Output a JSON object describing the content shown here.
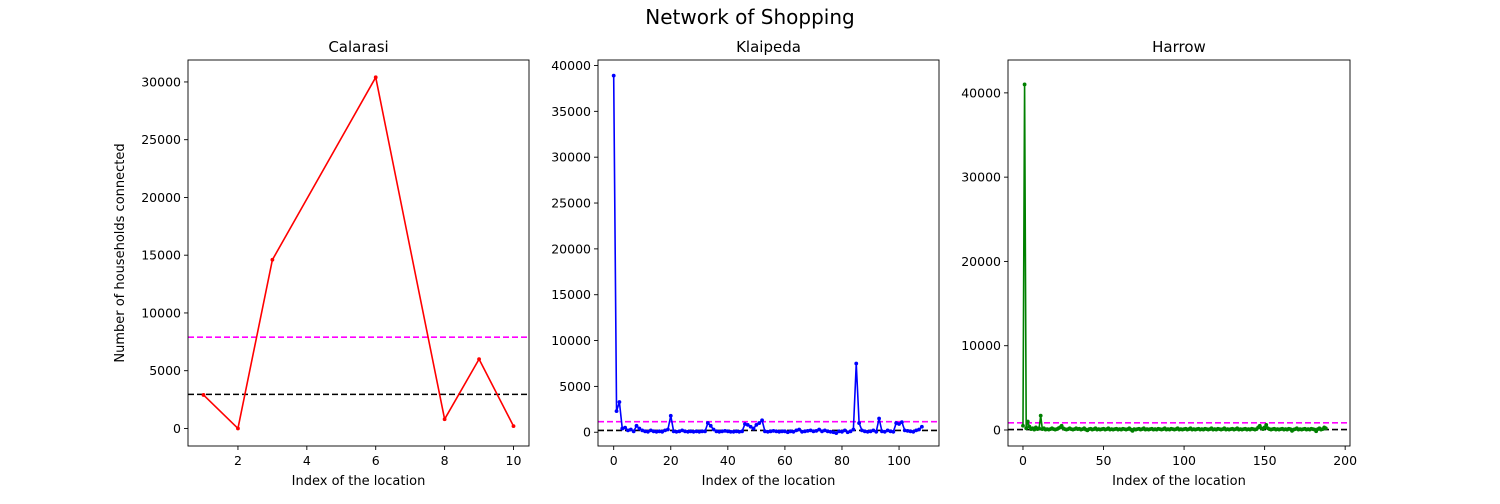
{
  "figure": {
    "title": "Network of Shopping"
  },
  "chart_data": [
    {
      "type": "line",
      "title": "Calarasi",
      "xlabel": "Index of the location",
      "ylabel": "Number of households connected",
      "xlim": [
        0.55,
        10.45
      ],
      "ylim": [
        -1520,
        31900
      ],
      "xticks": [
        2,
        4,
        6,
        8,
        10
      ],
      "yticks": [
        0,
        5000,
        10000,
        15000,
        20000,
        25000,
        30000
      ],
      "color": "#ff0000",
      "x": [
        1,
        2,
        3,
        6,
        8,
        9,
        10
      ],
      "y": [
        2900,
        0,
        14600,
        30400,
        800,
        6000,
        200
      ],
      "hlines": [
        {
          "value": 2950,
          "color": "#000000"
        },
        {
          "value": 7900,
          "color": "#ff00ff"
        }
      ]
    },
    {
      "type": "line",
      "title": "Klaipeda",
      "xlabel": "Index of the location",
      "ylabel": "",
      "xlim": [
        -5.5,
        114
      ],
      "ylim": [
        -1500,
        40600
      ],
      "xticks": [
        0,
        20,
        40,
        60,
        80,
        100
      ],
      "yticks": [
        0,
        5000,
        10000,
        15000,
        20000,
        25000,
        30000,
        35000,
        40000
      ],
      "color": "#0000ff",
      "x": [
        0,
        1,
        2,
        3,
        4,
        5,
        6,
        7,
        8,
        9,
        10,
        11,
        12,
        13,
        14,
        15,
        16,
        17,
        18,
        19,
        20,
        21,
        22,
        23,
        24,
        25,
        26,
        27,
        28,
        29,
        30,
        31,
        32,
        33,
        34,
        35,
        36,
        37,
        38,
        39,
        40,
        41,
        42,
        43,
        44,
        45,
        46,
        47,
        48,
        49,
        50,
        51,
        52,
        53,
        54,
        55,
        56,
        57,
        58,
        59,
        60,
        61,
        62,
        63,
        64,
        65,
        66,
        67,
        68,
        69,
        70,
        71,
        72,
        73,
        74,
        75,
        76,
        77,
        78,
        79,
        80,
        81,
        82,
        83,
        84,
        85,
        86,
        87,
        88,
        89,
        90,
        91,
        92,
        93,
        94,
        95,
        96,
        97,
        98,
        99,
        100,
        101,
        102,
        103,
        104,
        105,
        106,
        107,
        108
      ],
      "y": [
        38900,
        2300,
        3300,
        400,
        500,
        200,
        300,
        100,
        700,
        400,
        200,
        100,
        50,
        200,
        100,
        50,
        100,
        50,
        200,
        300,
        1800,
        100,
        50,
        100,
        200,
        100,
        50,
        100,
        50,
        100,
        50,
        100,
        100,
        1000,
        700,
        300,
        100,
        50,
        100,
        150,
        100,
        50,
        50,
        100,
        50,
        100,
        900,
        800,
        600,
        400,
        800,
        1000,
        1300,
        100,
        50,
        100,
        150,
        100,
        50,
        100,
        100,
        0,
        100,
        50,
        200,
        300,
        50,
        100,
        150,
        200,
        100,
        150,
        300,
        100,
        200,
        100,
        50,
        0,
        -100,
        100,
        50,
        200,
        0,
        100,
        300,
        7500,
        1000,
        200,
        100,
        50,
        100,
        200,
        50,
        1500,
        100,
        50,
        200,
        100,
        50,
        1000,
        900,
        1100,
        200,
        150,
        100,
        50,
        200,
        300,
        600
      ],
      "hlines": [
        {
          "value": 200,
          "color": "#000000"
        },
        {
          "value": 1150,
          "color": "#ff00ff"
        }
      ]
    },
    {
      "type": "line",
      "title": "Harrow",
      "xlabel": "Index of the location",
      "ylabel": "",
      "xlim": [
        -9.3,
        203
      ],
      "ylim": [
        -1900,
        43900
      ],
      "xticks": [
        0,
        50,
        100,
        150,
        200
      ],
      "yticks": [
        0,
        10000,
        20000,
        30000,
        40000
      ],
      "color": "#008000",
      "x": [
        0,
        1,
        2,
        3,
        4,
        5,
        6,
        7,
        8,
        9,
        10,
        11,
        12,
        13,
        14,
        15,
        16,
        17,
        18,
        19,
        20,
        21,
        22,
        23,
        24,
        25,
        26,
        27,
        28,
        29,
        30,
        31,
        32,
        33,
        34,
        35,
        36,
        37,
        38,
        39,
        40,
        41,
        42,
        43,
        44,
        45,
        46,
        47,
        48,
        49,
        50,
        51,
        52,
        53,
        54,
        55,
        56,
        57,
        58,
        59,
        60,
        61,
        62,
        63,
        64,
        65,
        66,
        67,
        68,
        69,
        70,
        71,
        72,
        73,
        74,
        75,
        76,
        77,
        78,
        79,
        80,
        81,
        82,
        83,
        84,
        85,
        86,
        87,
        88,
        89,
        90,
        91,
        92,
        93,
        94,
        95,
        96,
        97,
        98,
        99,
        100,
        101,
        102,
        103,
        104,
        105,
        106,
        107,
        108,
        109,
        110,
        111,
        112,
        113,
        114,
        115,
        116,
        117,
        118,
        119,
        120,
        121,
        122,
        123,
        124,
        125,
        126,
        127,
        128,
        129,
        130,
        131,
        132,
        133,
        134,
        135,
        136,
        137,
        138,
        139,
        140,
        141,
        142,
        143,
        144,
        145,
        146,
        147,
        148,
        149,
        150,
        151,
        152,
        153,
        154,
        155,
        156,
        157,
        158,
        159,
        160,
        161,
        162,
        163,
        164,
        165,
        166,
        167,
        168,
        169,
        170,
        171,
        172,
        173,
        174,
        175,
        176,
        177,
        178,
        179,
        180,
        181,
        182,
        183,
        184,
        185,
        186,
        187,
        188
      ],
      "y": [
        500,
        41000,
        200,
        1000,
        400,
        100,
        200,
        50,
        300,
        100,
        200,
        1700,
        100,
        200,
        50,
        100,
        50,
        100,
        200,
        100,
        50,
        100,
        200,
        300,
        500,
        200,
        100,
        50,
        100,
        200,
        100,
        50,
        100,
        200,
        100,
        150,
        50,
        100,
        200,
        50,
        -50,
        100,
        150,
        50,
        100,
        200,
        50,
        100,
        50,
        100,
        150,
        50,
        100,
        200,
        50,
        100,
        50,
        100,
        150,
        50,
        100,
        50,
        150,
        100,
        50,
        100,
        200,
        50,
        -100,
        100,
        50,
        100,
        150,
        50,
        100,
        200,
        50,
        100,
        50,
        100,
        150,
        50,
        100,
        50,
        150,
        100,
        50,
        100,
        200,
        50,
        100,
        50,
        150,
        100,
        50,
        100,
        200,
        50,
        100,
        50,
        100,
        150,
        50,
        100,
        200,
        50,
        100,
        50,
        100,
        150,
        50,
        100,
        50,
        150,
        100,
        50,
        100,
        200,
        50,
        100,
        50,
        150,
        100,
        50,
        100,
        200,
        50,
        100,
        50,
        100,
        150,
        50,
        100,
        200,
        50,
        100,
        50,
        100,
        150,
        50,
        100,
        50,
        150,
        100,
        50,
        100,
        300,
        500,
        200,
        100,
        300,
        600,
        200,
        100,
        50,
        100,
        150,
        50,
        100,
        50,
        100,
        150,
        50,
        100,
        50,
        150,
        100,
        -100,
        50,
        100,
        200,
        50,
        100,
        50,
        100,
        150,
        50,
        100,
        50,
        150,
        100,
        50,
        -150,
        100,
        200,
        50,
        100,
        300,
        200
      ],
      "hlines": [
        {
          "value": 50,
          "color": "#000000"
        },
        {
          "value": 850,
          "color": "#ff00ff"
        }
      ]
    }
  ]
}
